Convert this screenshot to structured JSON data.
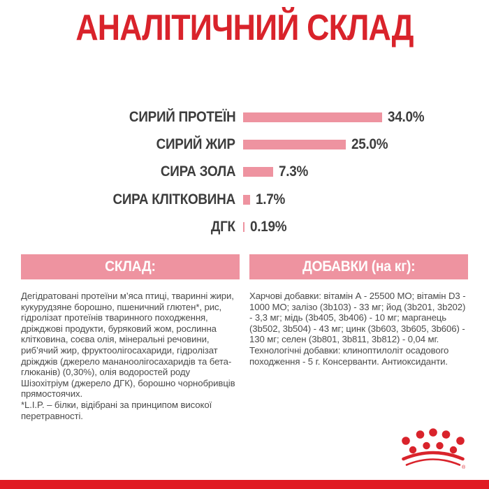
{
  "header": {
    "title": "АНАЛІТИЧНИЙ СКЛАД"
  },
  "chart_data": {
    "type": "bar",
    "orientation": "horizontal",
    "title": "АНАЛІТИЧНИЙ СКЛАД",
    "categories": [
      "СИРИЙ ПРОТЕЇН",
      "СИРИЙ ЖИР",
      "СИРА ЗОЛА",
      "СИРА КЛІТКОВИНА",
      "ДГК"
    ],
    "values": [
      34.0,
      25.0,
      7.3,
      1.7,
      0.19
    ],
    "value_labels": [
      "34.0%",
      "25.0%",
      "7.3%",
      "1.7%",
      "0.19%"
    ],
    "unit": "%",
    "xlim": [
      0,
      36
    ],
    "grid": false,
    "legend": "none",
    "bar_color": "#ee93a0",
    "label_color": "#3d3d3d"
  },
  "composition": {
    "header": "СКЛАД:",
    "text": "Дегідратовані протеїни м’яса птиці, тваринні жири, кукурудзяне борошно, пшеничний глютен*, рис, гідролізат протеїнів тваринного походження, дріжджові продукти, буряковий жом, рослинна клітковина, соєва олія, мінеральні речовини, риб’ячий жир, фруктоолігосахариди, гідролізат дріжджів (джерело мананоолігосахаридів та бета-глюканів) (0,30%), олія водоростей роду Шізохітріум (джерело ДГК), борошно чорнобривців прямостоячих.",
    "note": "*L.I.P. – білки, відібрані за принципом високої перетравності."
  },
  "additives": {
    "header": "ДОБАВКИ (на кг):",
    "text": "Харчові добавки: вітамін А - 25500 МО; вітамін D3 - 1000 МО; залізо (3b103) - 33 мг; йод (3b201, 3b202) - 3,3 мг; мідь (3b405, 3b406) - 10 мг; марганець (3b502, 3b504) - 43 мг; цинк (3b603, 3b605, 3b606) - 130 мг; селен (3b801, 3b811, 3b812) - 0,04 мг. Технологічні добавки: клиноптилоліт осадового походження - 5 г. Консерванти. Антиоксиданти."
  },
  "branding": {
    "logo": "royal-canin-crown",
    "registered_mark": "®"
  },
  "colors": {
    "brand_red": "#d9232b",
    "pink": "#ee93a0",
    "text_dark": "#3d3d3d",
    "text_body": "#4a4a4a",
    "bar_red": "#e01b22"
  }
}
